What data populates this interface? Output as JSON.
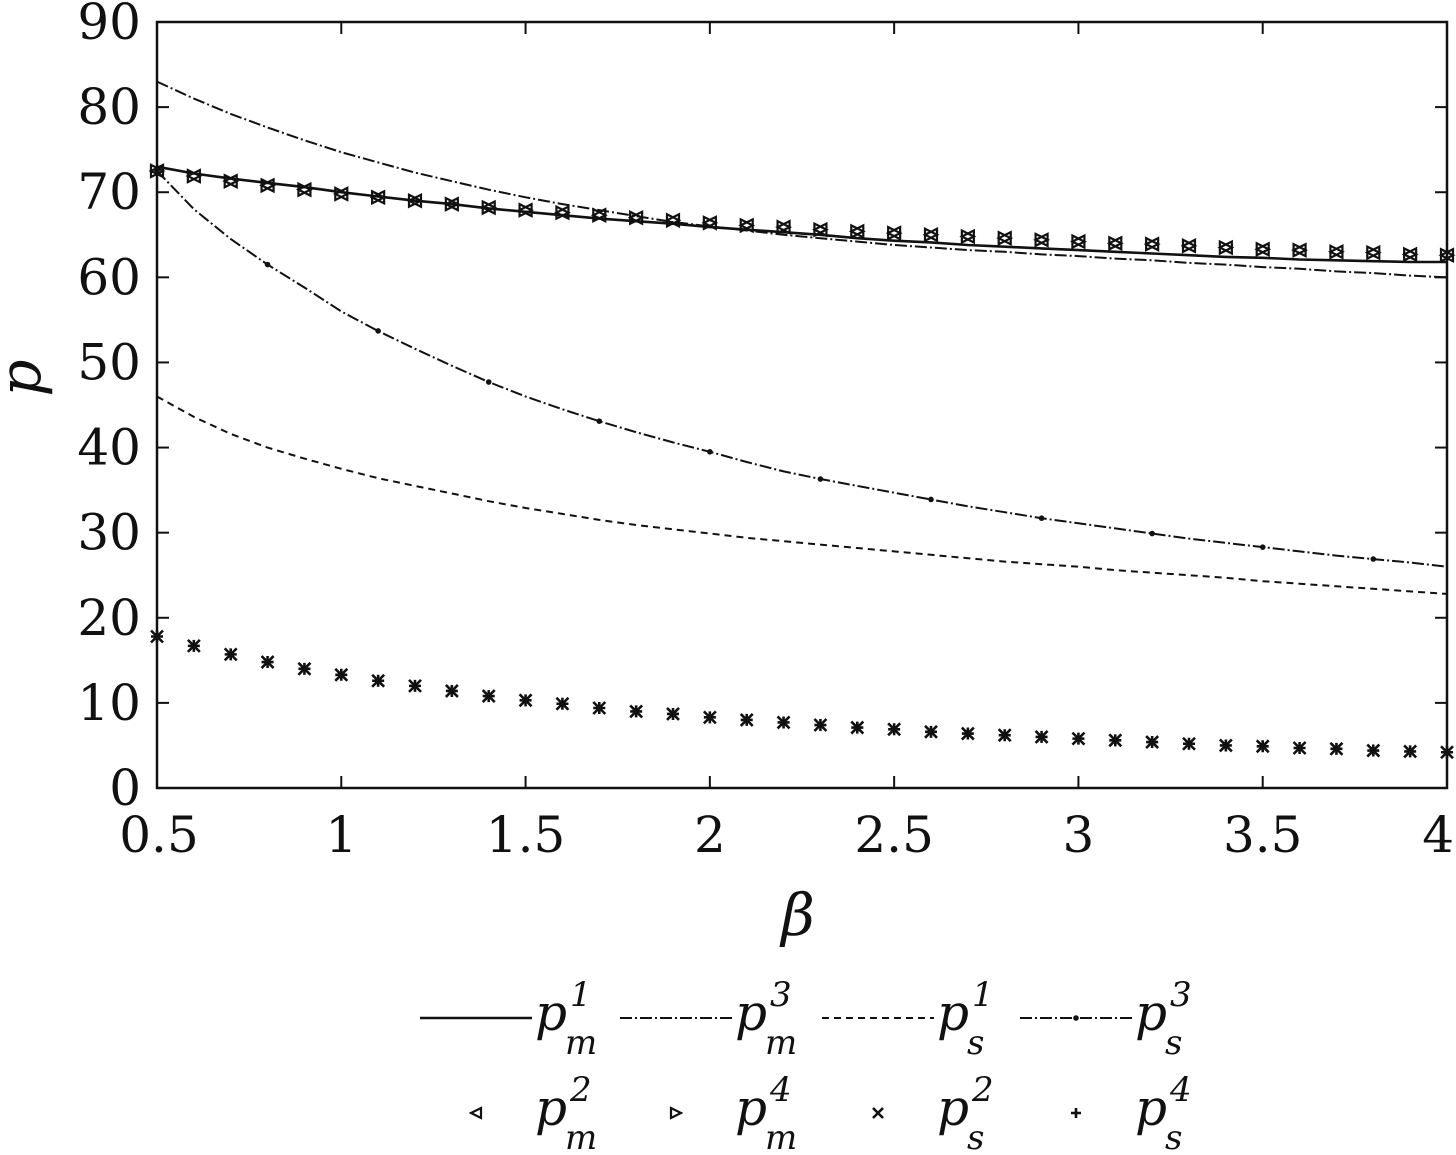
{
  "chart_data": {
    "type": "line",
    "xlabel": "β",
    "ylabel": "p",
    "xlim": [
      0.5,
      4
    ],
    "ylim": [
      0,
      90
    ],
    "xticks": [
      "0.5",
      "1",
      "1.5",
      "2",
      "2.5",
      "3",
      "3.5",
      "4"
    ],
    "yticks": [
      "0",
      "10",
      "20",
      "30",
      "40",
      "50",
      "60",
      "70",
      "80",
      "90"
    ],
    "grid": false,
    "legend_position": "bottom",
    "x": [
      0.5,
      0.6,
      0.7,
      0.8,
      0.9,
      1.0,
      1.1,
      1.2,
      1.3,
      1.4,
      1.5,
      1.6,
      1.7,
      1.8,
      1.9,
      2.0,
      2.1,
      2.2,
      2.3,
      2.4,
      2.5,
      2.6,
      2.7,
      2.8,
      2.9,
      3.0,
      3.1,
      3.2,
      3.3,
      3.4,
      3.5,
      3.6,
      3.7,
      3.8,
      3.9,
      4.0
    ],
    "series": [
      {
        "name": "p",
        "sup": "1",
        "sub": "m",
        "style": "solid",
        "marker": "none",
        "values": [
          73.0,
          72.2,
          71.6,
          71.1,
          70.6,
          70.0,
          69.5,
          69.0,
          68.6,
          68.1,
          67.7,
          67.3,
          66.9,
          66.6,
          66.3,
          65.9,
          65.6,
          65.3,
          65.0,
          64.6,
          64.3,
          64.1,
          63.8,
          63.6,
          63.4,
          63.2,
          63.0,
          62.8,
          62.6,
          62.4,
          62.3,
          62.1,
          62.0,
          61.9,
          61.8,
          61.8
        ]
      },
      {
        "name": "p",
        "sup": "3",
        "sub": "m",
        "style": "dashdot",
        "marker": "none",
        "values": [
          83.0,
          81.0,
          79.2,
          77.6,
          76.1,
          74.7,
          73.5,
          72.3,
          71.3,
          70.3,
          69.4,
          68.6,
          67.9,
          67.2,
          66.5,
          66.0,
          65.5,
          65.0,
          64.6,
          64.2,
          63.8,
          63.5,
          63.2,
          63.0,
          62.7,
          62.5,
          62.2,
          62.0,
          61.7,
          61.5,
          61.2,
          61.0,
          60.7,
          60.5,
          60.2,
          60.0
        ]
      },
      {
        "name": "p",
        "sup": "1",
        "sub": "s",
        "style": "dashed",
        "marker": "none",
        "values": [
          46.0,
          43.6,
          41.6,
          40.0,
          38.7,
          37.5,
          36.4,
          35.5,
          34.6,
          33.7,
          32.9,
          32.2,
          31.5,
          30.9,
          30.4,
          29.9,
          29.4,
          29.0,
          28.6,
          28.2,
          27.8,
          27.4,
          27.0,
          26.6,
          26.3,
          26.0,
          25.6,
          25.3,
          25.0,
          24.7,
          24.3,
          24.0,
          23.7,
          23.4,
          23.1,
          22.8
        ]
      },
      {
        "name": "p",
        "sup": "3",
        "sub": "s",
        "style": "dashdot",
        "marker": "dot",
        "values": [
          72.5,
          68.0,
          64.5,
          61.5,
          58.8,
          56.0,
          53.7,
          51.6,
          49.6,
          47.7,
          46.0,
          44.5,
          43.1,
          41.8,
          40.6,
          39.5,
          38.3,
          37.2,
          36.3,
          35.5,
          34.7,
          33.9,
          33.1,
          32.4,
          31.7,
          31.1,
          30.5,
          29.9,
          29.3,
          28.8,
          28.3,
          27.8,
          27.3,
          26.9,
          26.5,
          26.0
        ]
      },
      {
        "name": "p",
        "sup": "2",
        "sub": "m",
        "style": "none",
        "marker": "triangle-left",
        "values": [
          72.5,
          71.9,
          71.3,
          70.8,
          70.3,
          69.8,
          69.4,
          69.0,
          68.6,
          68.2,
          67.9,
          67.6,
          67.3,
          67.0,
          66.7,
          66.4,
          66.1,
          65.9,
          65.6,
          65.4,
          65.2,
          65.0,
          64.8,
          64.6,
          64.4,
          64.2,
          64.0,
          63.9,
          63.7,
          63.5,
          63.3,
          63.2,
          63.0,
          62.9,
          62.7,
          62.6
        ]
      },
      {
        "name": "p",
        "sup": "4",
        "sub": "m",
        "style": "none",
        "marker": "triangle-right",
        "values": [
          72.5,
          71.9,
          71.3,
          70.8,
          70.3,
          69.8,
          69.4,
          69.0,
          68.6,
          68.2,
          67.9,
          67.6,
          67.3,
          67.0,
          66.7,
          66.4,
          66.1,
          65.9,
          65.6,
          65.4,
          65.2,
          65.0,
          64.8,
          64.6,
          64.4,
          64.2,
          64.0,
          63.9,
          63.7,
          63.5,
          63.3,
          63.2,
          63.0,
          62.9,
          62.7,
          62.6
        ]
      },
      {
        "name": "p",
        "sup": "2",
        "sub": "s",
        "style": "none",
        "marker": "x",
        "values": [
          17.8,
          16.7,
          15.7,
          14.8,
          14.0,
          13.3,
          12.6,
          12.0,
          11.4,
          10.8,
          10.3,
          9.9,
          9.4,
          9.0,
          8.7,
          8.3,
          8.0,
          7.7,
          7.4,
          7.1,
          6.9,
          6.6,
          6.4,
          6.2,
          6.0,
          5.8,
          5.6,
          5.4,
          5.2,
          5.0,
          4.9,
          4.7,
          4.6,
          4.4,
          4.3,
          4.2
        ]
      },
      {
        "name": "p",
        "sup": "4",
        "sub": "s",
        "style": "none",
        "marker": "plus",
        "values": [
          17.8,
          16.7,
          15.7,
          14.8,
          14.0,
          13.3,
          12.6,
          12.0,
          11.4,
          10.8,
          10.3,
          9.9,
          9.4,
          9.0,
          8.7,
          8.3,
          8.0,
          7.7,
          7.4,
          7.1,
          6.9,
          6.6,
          6.4,
          6.2,
          6.0,
          5.8,
          5.6,
          5.4,
          5.2,
          5.0,
          4.9,
          4.7,
          4.6,
          4.4,
          4.3,
          4.2
        ]
      }
    ]
  },
  "colors": {
    "ink": "#111111",
    "background": "#ffffff"
  }
}
